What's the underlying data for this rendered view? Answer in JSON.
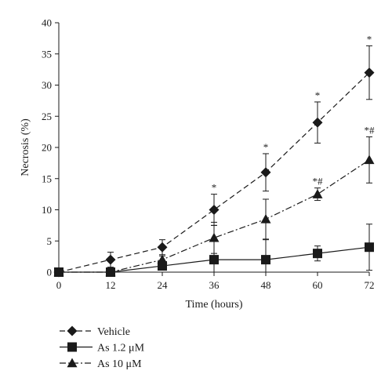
{
  "chart_data": {
    "type": "line",
    "xlabel": "Time (hours)",
    "ylabel": "Necrosis (%)",
    "x": [
      0,
      12,
      24,
      36,
      48,
      60,
      72
    ],
    "xlim": [
      0,
      72
    ],
    "ylim": [
      0,
      40
    ],
    "xticks": [
      "0",
      "12",
      "24",
      "36",
      "48",
      "60",
      "72"
    ],
    "yticks": [
      "0",
      "5",
      "10",
      "15",
      "20",
      "25",
      "30",
      "35",
      "40"
    ],
    "grid": false,
    "legend_position": "bottom-left",
    "series": [
      {
        "name": "Vehicle",
        "marker": "diamond",
        "line_style": "dashed",
        "values": [
          0,
          2,
          4,
          10,
          16,
          24,
          32
        ],
        "errors": [
          0.3,
          1.2,
          1.2,
          2.5,
          3.0,
          3.3,
          4.3
        ],
        "annotations": [
          "",
          "",
          "",
          "*",
          "*",
          "*",
          "*"
        ]
      },
      {
        "name": "As 1.2 μM",
        "marker": "square",
        "line_style": "solid",
        "values": [
          0,
          0,
          1,
          2,
          2,
          3,
          4
        ],
        "errors": [
          0.3,
          0.3,
          0.5,
          5.5,
          3.2,
          1.2,
          3.7
        ],
        "annotations": [
          "",
          "",
          "",
          "",
          "",
          "",
          ""
        ]
      },
      {
        "name": "As 10 μM",
        "marker": "triangle",
        "line_style": "dash-dot",
        "values": [
          0,
          0,
          2,
          5.5,
          8.5,
          12.5,
          18
        ],
        "errors": [
          0.3,
          0.3,
          0.6,
          2.5,
          3.2,
          1.0,
          3.7
        ],
        "annotations": [
          "",
          "",
          "",
          "",
          "",
          "*#",
          "*#"
        ]
      }
    ]
  }
}
